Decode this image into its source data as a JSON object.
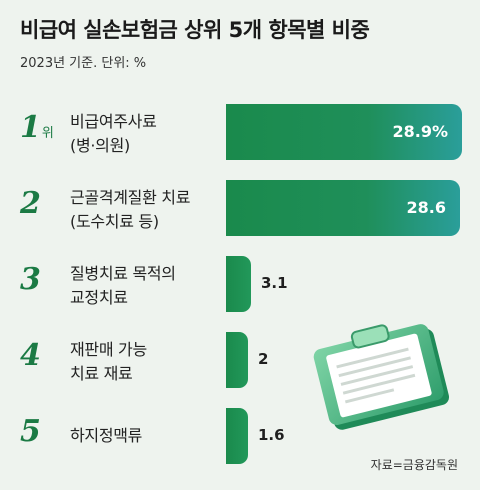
{
  "title": "비급여 실손보험금 상위 5개 항목별 비중",
  "subtitle": "2023년 기준. 단위: %",
  "source": "자료=금융감독원",
  "colors": {
    "accent": "#1b7a44",
    "bar": "#1a8a4c",
    "bar_end": "#2a9e9a"
  },
  "icons": [
    "clipboard-icon"
  ],
  "chart_data": {
    "type": "bar",
    "orientation": "horizontal",
    "title": "비급여 실손보험금 상위 5개 항목별 비중",
    "subtitle": "2023년 기준. 단위: %",
    "xlim": [
      0,
      28.9
    ],
    "grid": false,
    "items": [
      {
        "rank": "1",
        "rank_suffix": "위",
        "line1": "비급여주사료",
        "line2": "(병·의원)",
        "value": 28.9,
        "value_label": "28.9%"
      },
      {
        "rank": "2",
        "rank_suffix": "",
        "line1": "근골격계질환 치료",
        "line2": "(도수치료 등)",
        "value": 28.6,
        "value_label": "28.6"
      },
      {
        "rank": "3",
        "rank_suffix": "",
        "line1": "질병치료 목적의",
        "line2": "교정치료",
        "value": 3.1,
        "value_label": "3.1"
      },
      {
        "rank": "4",
        "rank_suffix": "",
        "line1": "재판매 가능",
        "line2": "치료 재료",
        "value": 2,
        "value_label": "2"
      },
      {
        "rank": "5",
        "rank_suffix": "",
        "line1": "하지정맥류",
        "line2": "",
        "value": 1.6,
        "value_label": "1.6"
      }
    ]
  }
}
